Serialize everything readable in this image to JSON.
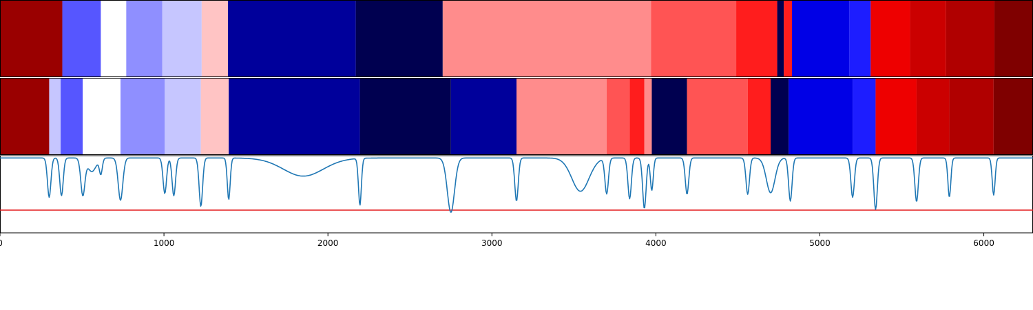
{
  "chart_data": {
    "type": "heatmap",
    "title": "",
    "xlabel": "",
    "ylabel": "",
    "xlim": [
      0,
      6300
    ],
    "grid": false,
    "x_ticks": [
      0,
      1000,
      2000,
      3000,
      4000,
      5000,
      6000
    ],
    "x_tick_labels": [
      "0",
      "1000",
      "2000",
      "3000",
      "4000",
      "5000",
      "6000"
    ],
    "colormap": "seismic",
    "colors": {
      "-4": "#000050",
      "-3": "#00009b",
      "-2": "#0000e6",
      "-1.5": "#1d1dff",
      "-1": "#5656ff",
      "-0.6": "#8f8fff",
      "-0.3": "#c6c6ff",
      "0": "#ffffff",
      "0.3": "#ffc4c4",
      "0.6": "#ff8c8c",
      "1": "#ff5454",
      "1.5": "#ff1d1d",
      "2": "#ee0000",
      "2.5": "#cb0000",
      "3": "#b00000",
      "3.5": "#9a0000",
      "4": "#7f0000"
    },
    "segmentation_tracks": [
      {
        "segments": [
          {
            "start": 0,
            "end": 380,
            "level": 3.5
          },
          {
            "start": 380,
            "end": 615,
            "level": -1
          },
          {
            "start": 615,
            "end": 770,
            "level": 0
          },
          {
            "start": 770,
            "end": 990,
            "level": -0.6
          },
          {
            "start": 990,
            "end": 1230,
            "level": -0.3
          },
          {
            "start": 1230,
            "end": 1390,
            "level": 0.3
          },
          {
            "start": 1390,
            "end": 2170,
            "level": -3
          },
          {
            "start": 2170,
            "end": 2700,
            "level": -4
          },
          {
            "start": 2700,
            "end": 3970,
            "level": 0.6
          },
          {
            "start": 3970,
            "end": 4490,
            "level": 1
          },
          {
            "start": 4490,
            "end": 4740,
            "level": 1.5
          },
          {
            "start": 4740,
            "end": 4780,
            "level": -4
          },
          {
            "start": 4780,
            "end": 4830,
            "level": 1.5
          },
          {
            "start": 4830,
            "end": 5180,
            "level": -2
          },
          {
            "start": 5180,
            "end": 5310,
            "level": -1.5
          },
          {
            "start": 5310,
            "end": 5550,
            "level": 2
          },
          {
            "start": 5550,
            "end": 5770,
            "level": 2.5
          },
          {
            "start": 5770,
            "end": 6065,
            "level": 3
          },
          {
            "start": 6065,
            "end": 6300,
            "level": 4
          }
        ]
      },
      {
        "segments": [
          {
            "start": 0,
            "end": 300,
            "level": 3.5
          },
          {
            "start": 300,
            "end": 370,
            "level": -0.3
          },
          {
            "start": 370,
            "end": 505,
            "level": -1
          },
          {
            "start": 505,
            "end": 735,
            "level": 0
          },
          {
            "start": 735,
            "end": 1005,
            "level": -0.6
          },
          {
            "start": 1005,
            "end": 1225,
            "level": -0.3
          },
          {
            "start": 1225,
            "end": 1395,
            "level": 0.3
          },
          {
            "start": 1395,
            "end": 2195,
            "level": -3
          },
          {
            "start": 2195,
            "end": 2750,
            "level": -4
          },
          {
            "start": 2750,
            "end": 3150,
            "level": -3
          },
          {
            "start": 3150,
            "end": 3700,
            "level": 0.6
          },
          {
            "start": 3700,
            "end": 3840,
            "level": 1
          },
          {
            "start": 3840,
            "end": 3930,
            "level": 1.5
          },
          {
            "start": 3930,
            "end": 3975,
            "level": 0.6
          },
          {
            "start": 3975,
            "end": 4190,
            "level": -4
          },
          {
            "start": 4190,
            "end": 4560,
            "level": 1
          },
          {
            "start": 4560,
            "end": 4700,
            "level": 1.5
          },
          {
            "start": 4700,
            "end": 4810,
            "level": -4
          },
          {
            "start": 4810,
            "end": 4830,
            "level": -2
          },
          {
            "start": 4830,
            "end": 5200,
            "level": -2
          },
          {
            "start": 5200,
            "end": 5340,
            "level": -1.5
          },
          {
            "start": 5340,
            "end": 5590,
            "level": 2
          },
          {
            "start": 5590,
            "end": 5790,
            "level": 2.5
          },
          {
            "start": 5790,
            "end": 6060,
            "level": 3
          },
          {
            "start": 6060,
            "end": 6300,
            "level": 4
          }
        ]
      }
    ],
    "line_series": {
      "color": "#1f77b4",
      "ylim": [
        -1,
        0.02
      ],
      "threshold": {
        "value": -0.7,
        "color": "#e41a1c"
      },
      "baseline": -0.01,
      "dips": [
        {
          "x": 300,
          "depth": -0.52,
          "width": 12
        },
        {
          "x": 375,
          "depth": -0.5,
          "width": 12
        },
        {
          "x": 505,
          "depth": -0.48,
          "width": 14
        },
        {
          "x": 560,
          "depth": -0.18,
          "width": 30
        },
        {
          "x": 615,
          "depth": -0.2,
          "width": 10
        },
        {
          "x": 735,
          "depth": -0.56,
          "width": 16
        },
        {
          "x": 1005,
          "depth": -0.47,
          "width": 12
        },
        {
          "x": 1060,
          "depth": -0.5,
          "width": 12
        },
        {
          "x": 1225,
          "depth": -0.64,
          "width": 12
        },
        {
          "x": 1395,
          "depth": -0.55,
          "width": 10
        },
        {
          "x": 1850,
          "depth": -0.24,
          "width": 140
        },
        {
          "x": 2195,
          "depth": -0.62,
          "width": 10
        },
        {
          "x": 2750,
          "depth": -0.72,
          "width": 25
        },
        {
          "x": 3150,
          "depth": -0.57,
          "width": 12
        },
        {
          "x": 3540,
          "depth": -0.44,
          "width": 60
        },
        {
          "x": 3700,
          "depth": -0.47,
          "width": 12
        },
        {
          "x": 3840,
          "depth": -0.54,
          "width": 12
        },
        {
          "x": 3930,
          "depth": -0.67,
          "width": 12
        },
        {
          "x": 3975,
          "depth": -0.43,
          "width": 10
        },
        {
          "x": 4190,
          "depth": -0.48,
          "width": 12
        },
        {
          "x": 4560,
          "depth": -0.48,
          "width": 12
        },
        {
          "x": 4700,
          "depth": -0.46,
          "width": 30
        },
        {
          "x": 4820,
          "depth": -0.57,
          "width": 12
        },
        {
          "x": 5200,
          "depth": -0.52,
          "width": 12
        },
        {
          "x": 5340,
          "depth": -0.68,
          "width": 12
        },
        {
          "x": 5590,
          "depth": -0.58,
          "width": 12
        },
        {
          "x": 5790,
          "depth": -0.52,
          "width": 10
        },
        {
          "x": 6060,
          "depth": -0.49,
          "width": 10
        }
      ]
    }
  }
}
